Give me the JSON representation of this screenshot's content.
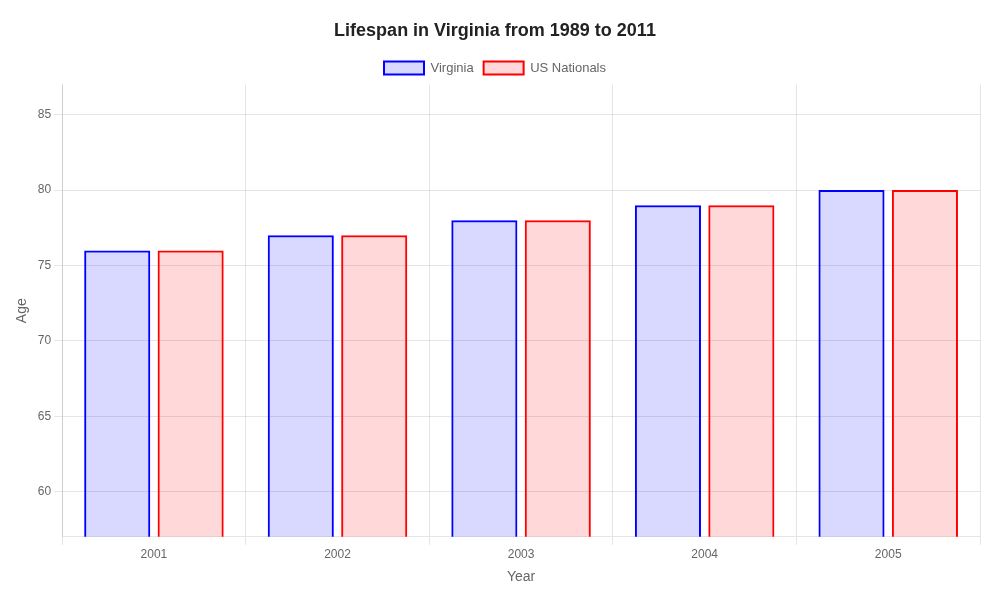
{
  "chart_data": {
    "type": "bar",
    "title": "Lifespan in Virginia from 1989 to 2011",
    "xlabel": "Year",
    "ylabel": "Age",
    "categories": [
      "2001",
      "2002",
      "2003",
      "2004",
      "2005"
    ],
    "series": [
      {
        "name": "Virginia",
        "color": "#0000ff",
        "values": [
          76,
          77,
          78,
          79,
          80
        ]
      },
      {
        "name": "US Nationals",
        "color": "#ff0000",
        "values": [
          76,
          77,
          78,
          79,
          80
        ]
      }
    ],
    "ylim": [
      57,
      87
    ],
    "yticks": [
      60,
      65,
      70,
      75,
      80,
      85
    ],
    "grid": true,
    "legend": "top"
  }
}
